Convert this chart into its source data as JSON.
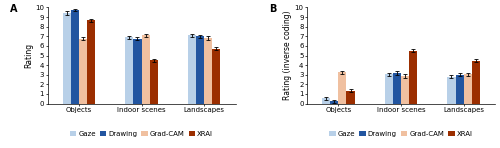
{
  "panel_A": {
    "title": "A",
    "ylabel": "Rating",
    "ylim": [
      0,
      10
    ],
    "yticks": [
      0,
      1,
      2,
      3,
      4,
      5,
      6,
      7,
      8,
      9,
      10
    ],
    "categories": [
      "Objects",
      "Indoor scenes",
      "Landscapes"
    ],
    "series": {
      "Gaze": [
        9.4,
        6.9,
        7.1
      ],
      "Drawing": [
        9.7,
        6.75,
        7.0
      ],
      "Grad-CAM": [
        6.75,
        7.1,
        6.8
      ],
      "XRAI": [
        8.65,
        4.5,
        5.7
      ]
    },
    "errors": {
      "Gaze": [
        0.18,
        0.15,
        0.18
      ],
      "Drawing": [
        0.12,
        0.15,
        0.18
      ],
      "Grad-CAM": [
        0.18,
        0.18,
        0.18
      ],
      "XRAI": [
        0.15,
        0.15,
        0.18
      ]
    }
  },
  "panel_B": {
    "title": "B",
    "ylabel": "Rating (inverse coding)",
    "ylim": [
      0,
      10
    ],
    "yticks": [
      0,
      1,
      2,
      3,
      4,
      5,
      6,
      7,
      8,
      9,
      10
    ],
    "categories": [
      "Objects",
      "Indoor scenes",
      "Landscapes"
    ],
    "series": {
      "Gaze": [
        0.55,
        3.05,
        2.8
      ],
      "Drawing": [
        0.25,
        3.2,
        3.0
      ],
      "Grad-CAM": [
        3.25,
        2.85,
        3.05
      ],
      "XRAI": [
        1.35,
        5.5,
        4.45
      ]
    },
    "errors": {
      "Gaze": [
        0.18,
        0.18,
        0.15
      ],
      "Drawing": [
        0.15,
        0.18,
        0.15
      ],
      "Grad-CAM": [
        0.18,
        0.18,
        0.18
      ],
      "XRAI": [
        0.18,
        0.15,
        0.15
      ]
    }
  },
  "colors": {
    "Gaze": "#b8d0e8",
    "Drawing": "#2255a0",
    "Grad-CAM": "#f0c0a0",
    "XRAI": "#9b2e00"
  },
  "legend_labels": [
    "Gaze",
    "Drawing",
    "Grad-CAM",
    "XRAI"
  ],
  "bar_width": 0.13,
  "figsize": [
    5.0,
    1.48
  ],
  "dpi": 100,
  "fontsize_title": 7,
  "fontsize_label": 5.5,
  "fontsize_tick": 5.0,
  "fontsize_legend": 5.0
}
